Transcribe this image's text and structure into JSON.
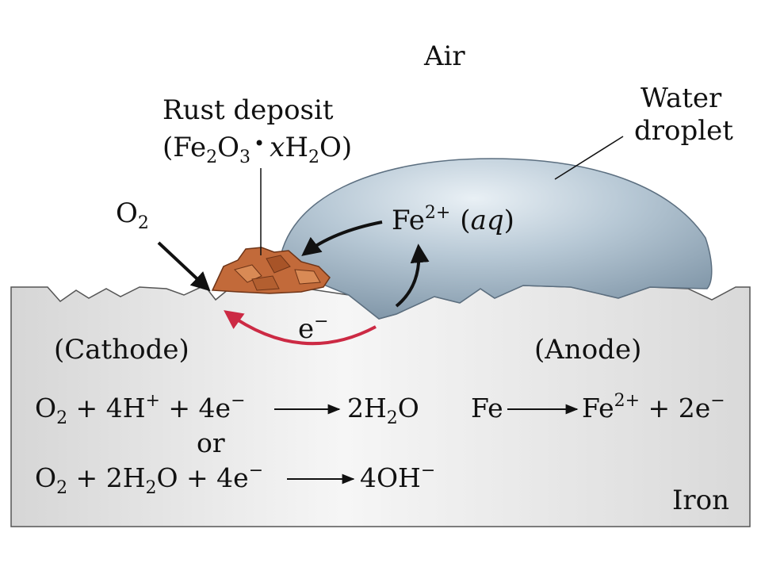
{
  "labels": {
    "air": "Air",
    "water_line1": "Water",
    "water_line2": "droplet",
    "rust_line1": "Rust deposit",
    "rust_open": "(Fe",
    "rust_sub2": "2",
    "rust_o": "O",
    "rust_sub3": "3",
    "rust_dot": "•",
    "rust_x": "x",
    "rust_h": "H",
    "rust_sub2b": "2",
    "rust_close": "O)",
    "o2_o": "O",
    "o2_sub": "2",
    "fe_ion": "Fe",
    "fe_ion_sup": "2+",
    "fe_ion_paren_open": "(",
    "fe_ion_aq": "aq",
    "fe_ion_paren_close": ")",
    "electron": "e",
    "electron_sup": "−",
    "cathode": "(Cathode)",
    "anode": "(Anode)",
    "iron": "Iron"
  },
  "equations": {
    "cathode_eq1": {
      "a1": "O",
      "a1_sub": "2",
      "a2": " + 4H",
      "a2_sup": "+",
      "a3": " + 4e",
      "a3_sup": "−",
      "product": "2H",
      "product_sub": "2",
      "product_end": "O"
    },
    "connector": "or",
    "cathode_eq2": {
      "a1": "O",
      "a1_sub": "2",
      "a2": " + 2H",
      "a2_sub": "2",
      "a3": "O + 4e",
      "a3_sup": "−",
      "product": "4OH",
      "product_sup": "−"
    },
    "anode_eq": {
      "reactant": "Fe",
      "product": "Fe",
      "product_sup": "2+",
      "rest": " + 2e",
      "rest_sup": "−"
    }
  },
  "colors": {
    "electron_arrow": "#cc2a44",
    "rust": "#c26a3a",
    "droplet": "#a9bccb",
    "iron": "#e6e6e6"
  }
}
